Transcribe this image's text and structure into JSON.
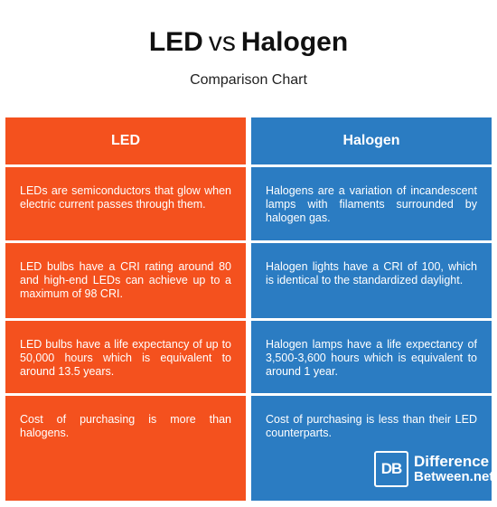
{
  "header": {
    "title_left": "LED",
    "title_vs": "vs",
    "title_right": "Halogen",
    "subtitle": "Comparison Chart"
  },
  "columns": [
    {
      "heading": "LED",
      "color": "#f4511e",
      "rows": [
        "LEDs are semiconductors that glow when electric current passes through them.",
        "LED bulbs have a CRI rating around 80 and high-end LEDs can achieve up to a maximum of 98 CRI.",
        "LED bulbs have a life expectancy of up to 50,000 hours which is equivalent to around 13.5 years.",
        "Cost of purchasing is more than halogens."
      ]
    },
    {
      "heading": "Halogen",
      "color": "#2b7cc2",
      "rows": [
        "Halogens are a variation of incandescent lamps with filaments surrounded by halogen gas.",
        "Halogen lights have a CRI of 100, which is identical to the standardized daylight.",
        "Halogen lamps have a life expectancy of 3,500-3,600 hours which is equivalent to around 1 year.",
        "Cost of purchasing is less than their LED counterparts."
      ]
    }
  ],
  "logo": {
    "mark": "DB",
    "line1": "Difference",
    "line2": "Between.net"
  }
}
